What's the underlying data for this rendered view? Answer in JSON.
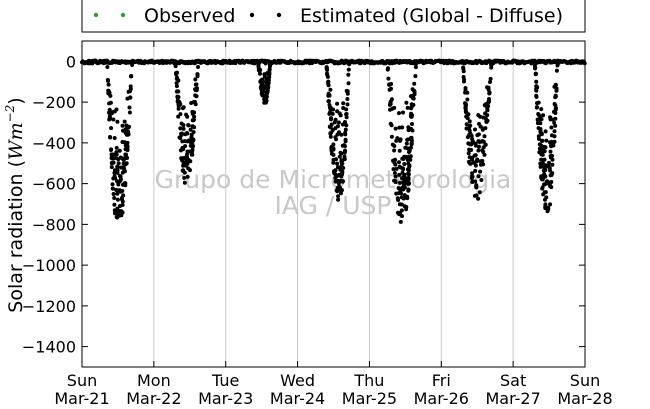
{
  "chart_data": {
    "type": "scatter",
    "title": "",
    "xlabel": "",
    "ylabel": "Solar radiation (W m^-2)",
    "ylabel_parts": {
      "text": "Solar radiation ",
      "unit_base": "Wm",
      "unit_exp": "−2"
    },
    "ylim": [
      -1500,
      100
    ],
    "yticks": [
      0,
      -200,
      -400,
      -600,
      -800,
      -1000,
      -1200,
      -1400
    ],
    "ytick_labels": [
      "0",
      "−200",
      "−400",
      "−600",
      "−800",
      "−1000",
      "−1200",
      "−1400"
    ],
    "xlim_days": [
      0,
      7
    ],
    "xticks": [
      {
        "day": 0,
        "line1": "Sun",
        "line2": "Mar-21"
      },
      {
        "day": 1,
        "line1": "Mon",
        "line2": "Mar-22"
      },
      {
        "day": 2,
        "line1": "Tue",
        "line2": "Mar-23"
      },
      {
        "day": 3,
        "line1": "Wed",
        "line2": "Mar-24"
      },
      {
        "day": 4,
        "line1": "Thu",
        "line2": "Mar-25"
      },
      {
        "day": 5,
        "line1": "Fri",
        "line2": "Mar-26"
      },
      {
        "day": 6,
        "line1": "Sat",
        "line2": "Mar-27"
      },
      {
        "day": 7,
        "line1": "Sun",
        "line2": "Mar-28"
      }
    ],
    "grid": {
      "vertical": true,
      "horizontal": false
    },
    "reference_line_y": 0,
    "legend_location": "top-center",
    "series": [
      {
        "name": "Observed",
        "color": "#2ca02c",
        "points": []
      },
      {
        "name": "Estimated (Global - Diffuse)",
        "color": "#000000",
        "envelopes": [
          {
            "start": 0.35,
            "end": 0.7,
            "peak": 0.5,
            "depth": 830
          },
          {
            "start": 1.3,
            "end": 1.62,
            "peak": 1.45,
            "depth": 610
          },
          {
            "start": 2.45,
            "end": 2.62,
            "peak": 2.55,
            "depth": 210
          },
          {
            "start": 3.4,
            "end": 3.72,
            "peak": 3.58,
            "depth": 690
          },
          {
            "start": 4.25,
            "end": 4.65,
            "peak": 4.45,
            "depth": 820
          },
          {
            "start": 5.3,
            "end": 5.7,
            "peak": 5.48,
            "depth": 690
          },
          {
            "start": 6.3,
            "end": 6.62,
            "peak": 6.48,
            "depth": 760
          }
        ]
      }
    ]
  },
  "legend": {
    "items": [
      {
        "label": "Observed",
        "color": "#2ca02c"
      },
      {
        "label": "Estimated (Global - Diffuse)",
        "color": "#000000"
      }
    ]
  },
  "watermark": {
    "line1": "Grupo de Micrometeorologia",
    "line2": "IAG / USP"
  }
}
